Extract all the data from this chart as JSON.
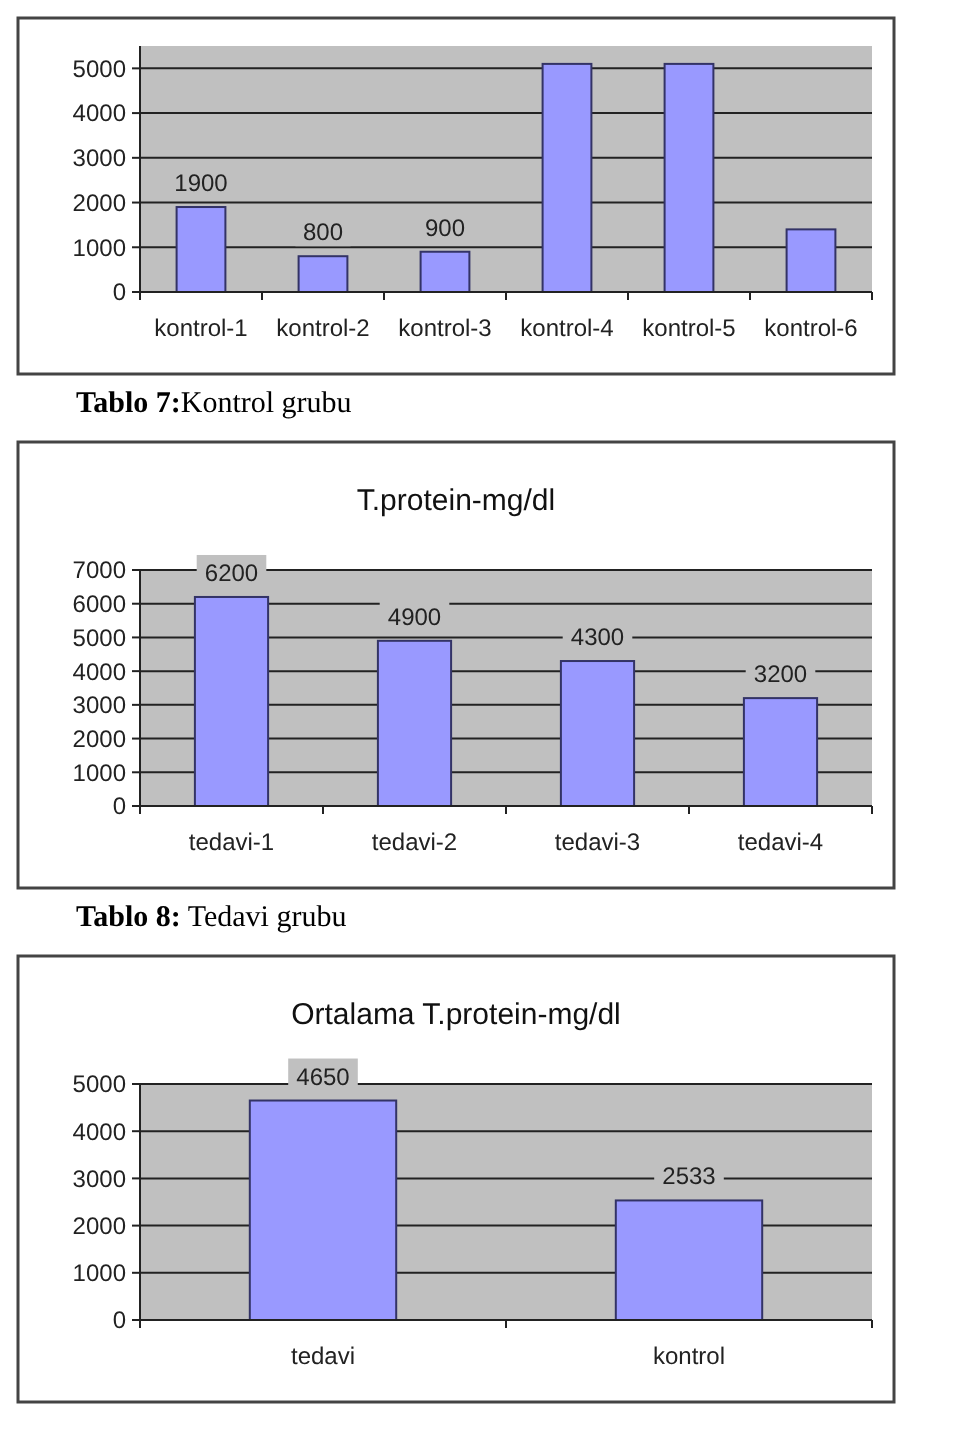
{
  "chart_data": [
    {
      "type": "bar",
      "categories": [
        "kontrol-1",
        "kontrol-2",
        "kontrol-3",
        "kontrol-4",
        "kontrol-5",
        "kontrol-6"
      ],
      "values": [
        1900,
        800,
        900,
        5100,
        5100,
        1400
      ],
      "value_labels": [
        "1900",
        "800",
        "900",
        null,
        null,
        null
      ],
      "color": "#9999ff",
      "ylim": [
        0,
        5500
      ],
      "yticks": [
        0,
        1000,
        2000,
        3000,
        4000,
        5000
      ],
      "grid": "y",
      "annotations": [
        "Tablo 7:Kontrol grubu"
      ]
    },
    {
      "type": "bar",
      "title": "T.protein-mg/dl",
      "categories": [
        "tedavi-1",
        "tedavi-2",
        "tedavi-3",
        "tedavi-4"
      ],
      "values": [
        6200,
        4900,
        4300,
        3200
      ],
      "data_labels": true,
      "color": "#9999ff",
      "ylim": [
        0,
        7000
      ],
      "yticks": [
        0,
        1000,
        2000,
        3000,
        4000,
        5000,
        6000,
        7000
      ],
      "grid": "y",
      "annotations": [
        "Tablo 8: Tedavi grubu"
      ]
    },
    {
      "type": "bar",
      "title": "Ortalama T.protein-mg/dl",
      "categories": [
        "tedavi",
        "kontrol"
      ],
      "values": [
        4650,
        2533
      ],
      "data_labels": true,
      "color": "#9999ff",
      "ylim": [
        0,
        5000
      ],
      "yticks": [
        0,
        1000,
        2000,
        3000,
        4000,
        5000
      ],
      "grid": "y"
    }
  ]
}
